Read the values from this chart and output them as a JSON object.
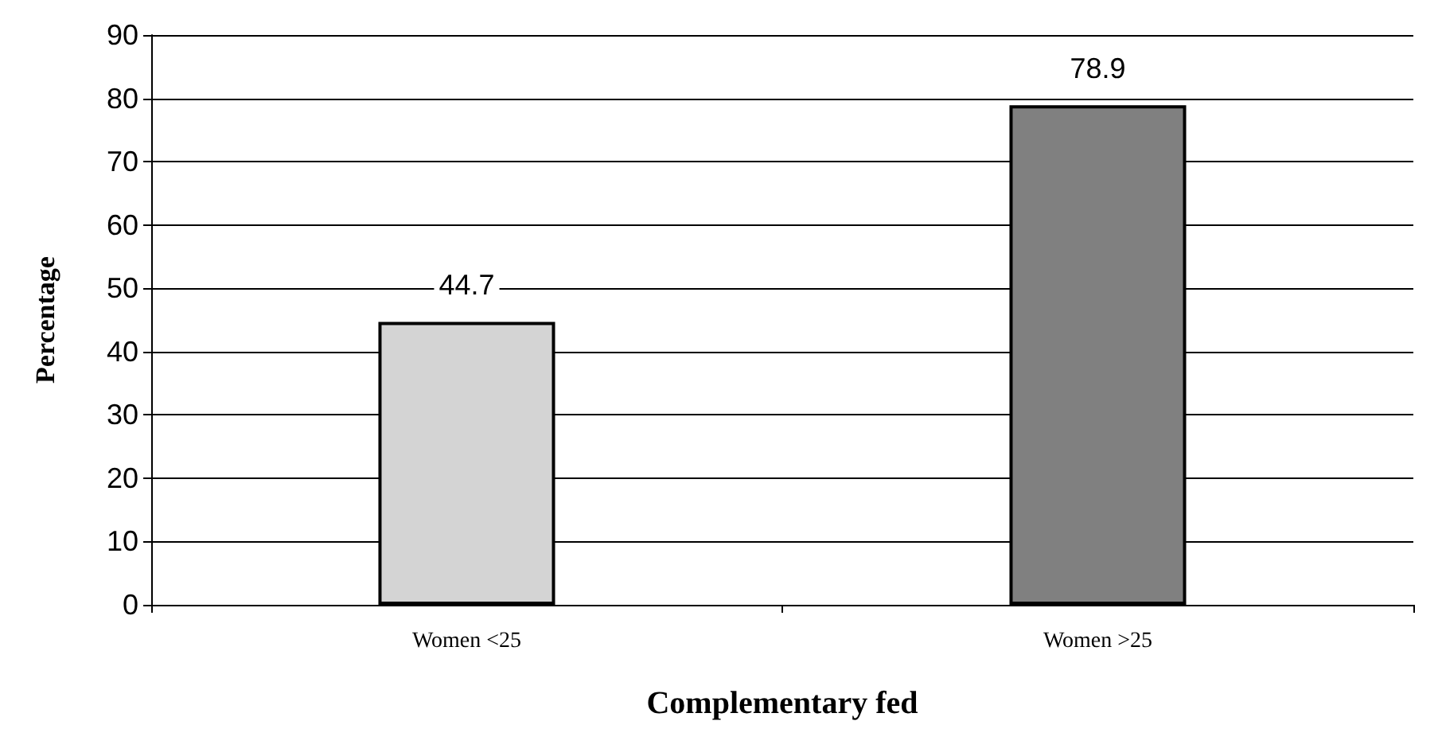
{
  "chart_data": {
    "type": "bar",
    "categories": [
      "Women <25",
      "Women >25"
    ],
    "values": [
      44.7,
      78.9
    ],
    "colors": [
      "#d4d4d4",
      "#808080"
    ],
    "xlabel": "Complementary fed",
    "ylabel": "Percentage",
    "ylim": [
      0,
      90
    ],
    "yticks": [
      0,
      10,
      20,
      30,
      40,
      50,
      60,
      70,
      80,
      90
    ],
    "grid": "y",
    "data_labels": true
  }
}
